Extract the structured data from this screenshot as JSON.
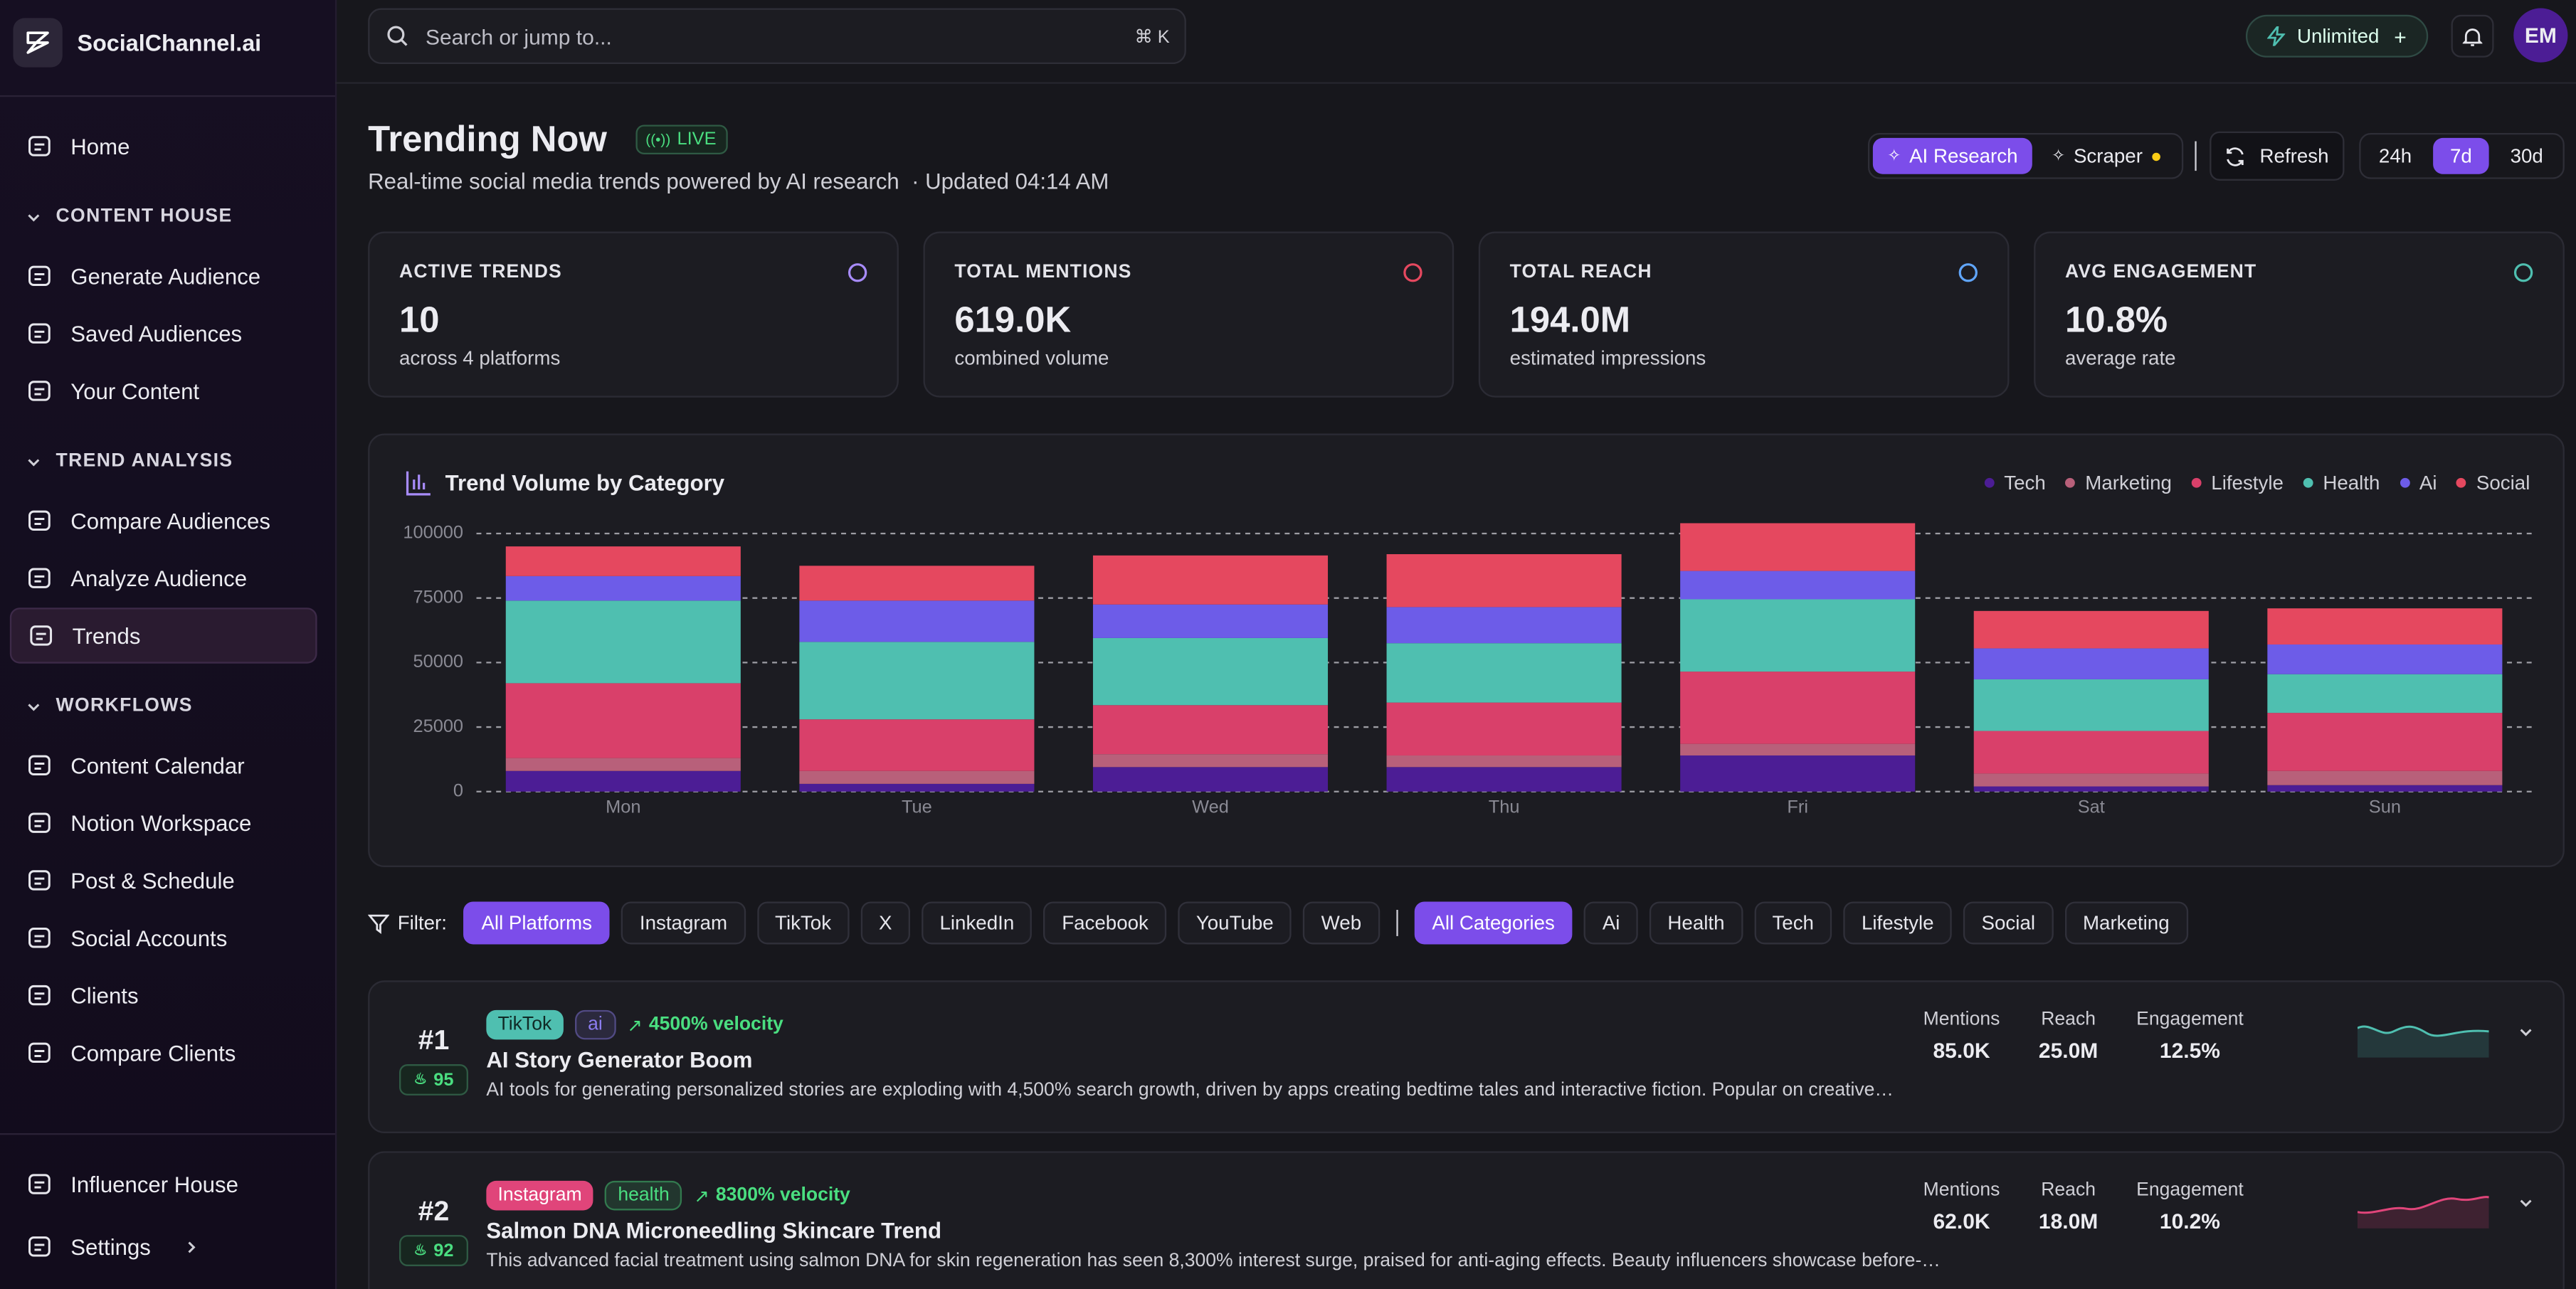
{
  "sidebar": {
    "brand": "SocialChannel.ai",
    "home": "Home",
    "groups": [
      {
        "title": "CONTENT HOUSE",
        "items": [
          "Generate Audience",
          "Saved Audiences",
          "Your Content"
        ]
      },
      {
        "title": "TREND ANALYSIS",
        "items": [
          "Compare Audiences",
          "Analyze Audience",
          "Trends"
        ]
      },
      {
        "title": "WORKFLOWS",
        "items": [
          "Content Calendar",
          "Notion Workspace",
          "Post & Schedule",
          "Social Accounts",
          "Clients",
          "Compare Clients"
        ]
      }
    ],
    "footer": [
      "Influencer House",
      "Settings"
    ]
  },
  "topbar": {
    "search": "Search or jump to...",
    "shortcut": "⌘ K",
    "plan": "Unlimited",
    "avatar": "EM"
  },
  "header": {
    "title": "Trending Now",
    "badge": "LIVE",
    "subtitle": "Real-time social media trends powered by AI research",
    "updated": "· Updated 04:14 AM",
    "sources": [
      "AI Research",
      "Scraper"
    ],
    "refresh": "Refresh",
    "ranges": [
      "24h",
      "7d",
      "30d"
    ]
  },
  "stats": [
    {
      "label": "ACTIVE TRENDS",
      "value": "10",
      "note": "across 4 platforms",
      "color": "#a78bfa"
    },
    {
      "label": "TOTAL MENTIONS",
      "value": "619.0K",
      "note": "combined volume",
      "color": "#e5485f"
    },
    {
      "label": "TOTAL REACH",
      "value": "194.0M",
      "note": "estimated impressions",
      "color": "#60a5fa"
    },
    {
      "label": "AVG ENGAGEMENT",
      "value": "10.8%",
      "note": "average rate",
      "color": "#4fbfb0"
    }
  ],
  "chart_data": {
    "type": "bar",
    "stacked": true,
    "title": "Trend Volume by Category",
    "categories": [
      "Mon",
      "Tue",
      "Wed",
      "Thu",
      "Fri",
      "Sat",
      "Sun"
    ],
    "series": [
      {
        "name": "Tech",
        "color": "#4c1d95",
        "values": [
          8000,
          3000,
          9500,
          9500,
          14000,
          2000,
          2500
        ]
      },
      {
        "name": "Marketing",
        "color": "#b8607a",
        "values": [
          5000,
          5000,
          5000,
          4500,
          4500,
          5000,
          5500
        ]
      },
      {
        "name": "Lifestyle",
        "color": "#d9406a",
        "values": [
          29000,
          20000,
          19000,
          20500,
          28000,
          16500,
          22500
        ]
      },
      {
        "name": "Health",
        "color": "#4fbfb0",
        "values": [
          32000,
          30000,
          26000,
          23000,
          28000,
          20000,
          15000
        ]
      },
      {
        "name": "Ai",
        "color": "#6d5ce8",
        "values": [
          9500,
          16000,
          13000,
          14000,
          11000,
          12000,
          11500
        ]
      },
      {
        "name": "Social",
        "color": "#e5485f",
        "values": [
          11500,
          13500,
          19000,
          20500,
          18500,
          14500,
          14000
        ]
      }
    ],
    "ylim": [
      0,
      105000
    ],
    "yticks": [
      0,
      25000,
      50000,
      75000,
      100000
    ],
    "grid": true,
    "legend": "top-right"
  },
  "filters": {
    "label": "Filter:",
    "platforms": [
      "All Platforms",
      "Instagram",
      "TikTok",
      "X",
      "LinkedIn",
      "Facebook",
      "YouTube",
      "Web"
    ],
    "categories": [
      "All Categories",
      "Ai",
      "Health",
      "Tech",
      "Lifestyle",
      "Social",
      "Marketing"
    ]
  },
  "metric_labels": [
    "Mentions",
    "Reach",
    "Engagement"
  ],
  "trends": [
    {
      "rank": "#1",
      "score": 95,
      "platform": "TikTok",
      "platform_color": "#4fbfb0",
      "category": "ai",
      "category_color": "#8b7cf0",
      "velocity": "4500% velocity",
      "title": "AI Story Generator Boom",
      "description": "AI tools for generating personalized stories are exploding with 4,500% search growth, driven by apps creating bedtime tales and interactive fiction. Popular on creative…",
      "metrics": [
        "85.0K",
        "25.0M",
        "12.5%"
      ],
      "spark_color": "#4fbfb0"
    },
    {
      "rank": "#2",
      "score": 92,
      "platform": "Instagram",
      "platform_color": "#e0457a",
      "category": "health",
      "category_color": "#4ade80",
      "velocity": "8300% velocity",
      "title": "Salmon DNA Microneedling Skincare Trend",
      "description": "This advanced facial treatment using salmon DNA for skin regeneration has seen 8,300% interest surge, praised for anti-aging effects. Beauty influencers showcase before-…",
      "metrics": [
        "62.0K",
        "18.0M",
        "10.2%"
      ],
      "spark_color": "#e0457a"
    }
  ]
}
